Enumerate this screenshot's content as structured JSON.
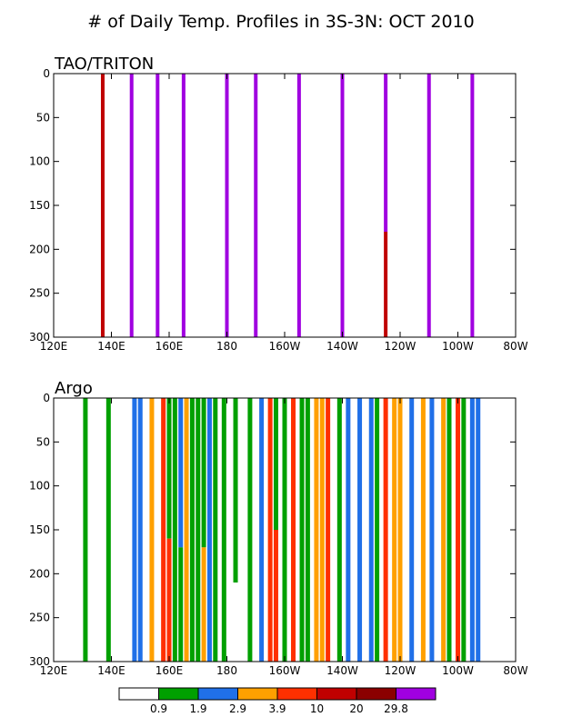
{
  "chart_data": {
    "title": "# of Daily Temp. Profiles in 3S-3N: OCT 2010",
    "panels": [
      {
        "type": "bar",
        "title": "TAO/TRITON",
        "xlim": [
          120,
          280
        ],
        "ylim": [
          0,
          300
        ],
        "y_inverted": true,
        "xticks": [
          120,
          140,
          160,
          180,
          200,
          220,
          240,
          260,
          280
        ],
        "xtick_labels": [
          "120E",
          "140E",
          "160E",
          "180",
          "160W",
          "140W",
          "120W",
          "100W",
          "80W"
        ],
        "yticks": [
          0,
          50,
          100,
          150,
          200,
          250,
          300
        ],
        "bars": [
          {
            "lon": 137,
            "segments": [
              {
                "from": 0,
                "to": 300,
                "value": 20
              }
            ]
          },
          {
            "lon": 147,
            "segments": [
              {
                "from": 0,
                "to": 300,
                "value": 31
              }
            ]
          },
          {
            "lon": 156,
            "segments": [
              {
                "from": 0,
                "to": 300,
                "value": 31
              }
            ]
          },
          {
            "lon": 165,
            "segments": [
              {
                "from": 0,
                "to": 300,
                "value": 31
              }
            ]
          },
          {
            "lon": 180,
            "segments": [
              {
                "from": 0,
                "to": 300,
                "value": 31
              }
            ]
          },
          {
            "lon": 190,
            "segments": [
              {
                "from": 0,
                "to": 300,
                "value": 31
              }
            ]
          },
          {
            "lon": 205,
            "segments": [
              {
                "from": 0,
                "to": 300,
                "value": 31
              }
            ]
          },
          {
            "lon": 220,
            "segments": [
              {
                "from": 0,
                "to": 300,
                "value": 31
              }
            ]
          },
          {
            "lon": 235,
            "segments": [
              {
                "from": 0,
                "to": 180,
                "value": 31
              },
              {
                "from": 180,
                "to": 300,
                "value": 15
              }
            ]
          },
          {
            "lon": 250,
            "segments": [
              {
                "from": 0,
                "to": 300,
                "value": 31
              }
            ]
          },
          {
            "lon": 265,
            "segments": [
              {
                "from": 0,
                "to": 300,
                "value": 31
              }
            ]
          }
        ]
      },
      {
        "type": "bar",
        "title": "Argo",
        "xlim": [
          120,
          280
        ],
        "ylim": [
          0,
          300
        ],
        "y_inverted": true,
        "xticks": [
          120,
          140,
          160,
          180,
          200,
          220,
          240,
          260,
          280
        ],
        "xtick_labels": [
          "120E",
          "140E",
          "160E",
          "180",
          "160W",
          "140W",
          "120W",
          "100W",
          "80W"
        ],
        "yticks": [
          0,
          50,
          100,
          150,
          200,
          250,
          300
        ],
        "bars": [
          {
            "lon": 131,
            "segments": [
              {
                "from": 0,
                "to": 300,
                "value": 1
              }
            ]
          },
          {
            "lon": 139,
            "segments": [
              {
                "from": 0,
                "to": 300,
                "value": 1
              }
            ]
          },
          {
            "lon": 148,
            "segments": [
              {
                "from": 0,
                "to": 300,
                "value": 2
              }
            ]
          },
          {
            "lon": 150,
            "segments": [
              {
                "from": 0,
                "to": 300,
                "value": 2
              }
            ]
          },
          {
            "lon": 154,
            "segments": [
              {
                "from": 0,
                "to": 300,
                "value": 3
              }
            ]
          },
          {
            "lon": 158,
            "segments": [
              {
                "from": 0,
                "to": 300,
                "value": 5
              }
            ]
          },
          {
            "lon": 160,
            "segments": [
              {
                "from": 0,
                "to": 160,
                "value": 1
              },
              {
                "from": 160,
                "to": 300,
                "value": 5
              }
            ]
          },
          {
            "lon": 162,
            "segments": [
              {
                "from": 0,
                "to": 300,
                "value": 1
              }
            ]
          },
          {
            "lon": 164,
            "segments": [
              {
                "from": 0,
                "to": 170,
                "value": 2
              },
              {
                "from": 170,
                "to": 300,
                "value": 1
              }
            ]
          },
          {
            "lon": 166,
            "segments": [
              {
                "from": 0,
                "to": 300,
                "value": 3
              }
            ]
          },
          {
            "lon": 168,
            "segments": [
              {
                "from": 0,
                "to": 300,
                "value": 1
              }
            ]
          },
          {
            "lon": 170,
            "segments": [
              {
                "from": 0,
                "to": 300,
                "value": 1
              }
            ]
          },
          {
            "lon": 172,
            "segments": [
              {
                "from": 0,
                "to": 170,
                "value": 1
              },
              {
                "from": 170,
                "to": 300,
                "value": 3
              }
            ]
          },
          {
            "lon": 174,
            "segments": [
              {
                "from": 0,
                "to": 300,
                "value": 2
              }
            ]
          },
          {
            "lon": 176,
            "segments": [
              {
                "from": 0,
                "to": 300,
                "value": 1
              }
            ]
          },
          {
            "lon": 179,
            "segments": [
              {
                "from": 0,
                "to": 300,
                "value": 1
              }
            ]
          },
          {
            "lon": 183,
            "segments": [
              {
                "from": 0,
                "to": 210,
                "value": 1
              }
            ]
          },
          {
            "lon": 188,
            "segments": [
              {
                "from": 0,
                "to": 300,
                "value": 1
              }
            ]
          },
          {
            "lon": 192,
            "segments": [
              {
                "from": 0,
                "to": 300,
                "value": 2
              }
            ]
          },
          {
            "lon": 195,
            "segments": [
              {
                "from": 0,
                "to": 300,
                "value": 5
              }
            ]
          },
          {
            "lon": 197,
            "segments": [
              {
                "from": 0,
                "to": 150,
                "value": 1
              },
              {
                "from": 150,
                "to": 300,
                "value": 5
              }
            ]
          },
          {
            "lon": 200,
            "segments": [
              {
                "from": 0,
                "to": 300,
                "value": 1
              }
            ]
          },
          {
            "lon": 203,
            "segments": [
              {
                "from": 0,
                "to": 300,
                "value": 5
              }
            ]
          },
          {
            "lon": 206,
            "segments": [
              {
                "from": 0,
                "to": 300,
                "value": 1
              }
            ]
          },
          {
            "lon": 208,
            "segments": [
              {
                "from": 0,
                "to": 300,
                "value": 1
              }
            ]
          },
          {
            "lon": 211,
            "segments": [
              {
                "from": 0,
                "to": 300,
                "value": 3
              }
            ]
          },
          {
            "lon": 213,
            "segments": [
              {
                "from": 0,
                "to": 300,
                "value": 3
              }
            ]
          },
          {
            "lon": 215,
            "segments": [
              {
                "from": 0,
                "to": 300,
                "value": 5
              }
            ]
          },
          {
            "lon": 219,
            "segments": [
              {
                "from": 0,
                "to": 300,
                "value": 1
              }
            ]
          },
          {
            "lon": 222,
            "segments": [
              {
                "from": 0,
                "to": 300,
                "value": 2
              }
            ]
          },
          {
            "lon": 226,
            "segments": [
              {
                "from": 0,
                "to": 300,
                "value": 2
              }
            ]
          },
          {
            "lon": 230,
            "segments": [
              {
                "from": 0,
                "to": 300,
                "value": 2
              }
            ]
          },
          {
            "lon": 232,
            "segments": [
              {
                "from": 0,
                "to": 300,
                "value": 1
              }
            ]
          },
          {
            "lon": 235,
            "segments": [
              {
                "from": 0,
                "to": 300,
                "value": 5
              }
            ]
          },
          {
            "lon": 238,
            "segments": [
              {
                "from": 0,
                "to": 300,
                "value": 3
              }
            ]
          },
          {
            "lon": 240,
            "segments": [
              {
                "from": 0,
                "to": 300,
                "value": 3
              }
            ]
          },
          {
            "lon": 244,
            "segments": [
              {
                "from": 0,
                "to": 300,
                "value": 2
              }
            ]
          },
          {
            "lon": 248,
            "segments": [
              {
                "from": 0,
                "to": 300,
                "value": 3
              }
            ]
          },
          {
            "lon": 251,
            "segments": [
              {
                "from": 0,
                "to": 300,
                "value": 2
              }
            ]
          },
          {
            "lon": 255,
            "segments": [
              {
                "from": 0,
                "to": 300,
                "value": 3
              }
            ]
          },
          {
            "lon": 257,
            "segments": [
              {
                "from": 0,
                "to": 300,
                "value": 1
              }
            ]
          },
          {
            "lon": 260,
            "segments": [
              {
                "from": 0,
                "to": 300,
                "value": 5
              }
            ]
          },
          {
            "lon": 262,
            "segments": [
              {
                "from": 0,
                "to": 300,
                "value": 1
              }
            ]
          },
          {
            "lon": 265,
            "segments": [
              {
                "from": 0,
                "to": 300,
                "value": 2
              }
            ]
          },
          {
            "lon": 267,
            "segments": [
              {
                "from": 0,
                "to": 300,
                "value": 2
              }
            ]
          }
        ]
      }
    ],
    "colorbar": {
      "levels": [
        "0.9",
        "1.9",
        "2.9",
        "3.9",
        "10",
        "20",
        "29.8"
      ],
      "colors": [
        "#ffffff",
        "#00a000",
        "#2070e8",
        "#ffa000",
        "#ff3000",
        "#c00000",
        "#8b0000",
        "#a000e0"
      ]
    }
  }
}
